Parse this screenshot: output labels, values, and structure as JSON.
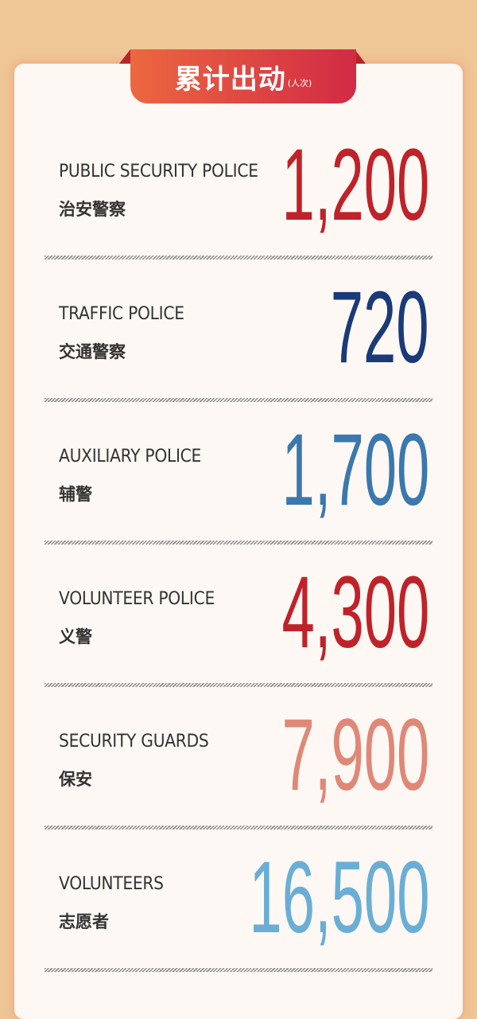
{
  "header": {
    "title": "累计出动",
    "unit": "(人次)",
    "color_start": "#ec6740",
    "color_end": "#d22a45"
  },
  "rows": [
    {
      "en": "PUBLIC SECURITY POLICE",
      "zh": "治安警察",
      "value": "1,200",
      "color": "#c0222a"
    },
    {
      "en": "TRAFFIC POLICE",
      "zh": "交通警察",
      "value": "720",
      "color": "#1a3a78"
    },
    {
      "en": "AUXILIARY POLICE",
      "zh": "辅警",
      "value": "1,700",
      "color": "#3a78ae"
    },
    {
      "en": "VOLUNTEER POLICE",
      "zh": "义警",
      "value": "4,300",
      "color": "#c0222a"
    },
    {
      "en": "SECURITY GUARDS",
      "zh": "保安",
      "value": "7,900",
      "color": "#e08878"
    },
    {
      "en": "VOLUNTEERS",
      "zh": "志愿者",
      "value": "16,500",
      "color": "#6aaed6"
    }
  ]
}
